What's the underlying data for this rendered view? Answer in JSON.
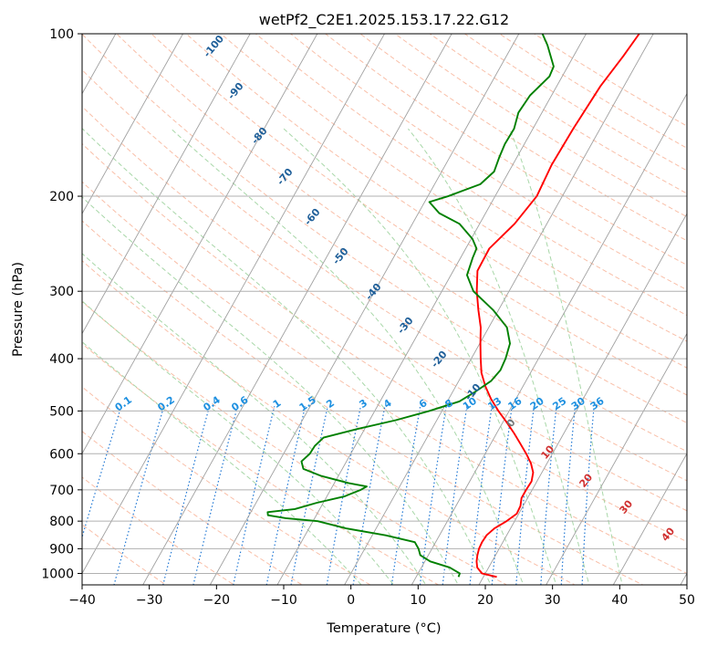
{
  "chart_data": {
    "type": "line",
    "subtype": "skew-t log-p",
    "title": "wetPf2_C2E1.2025.153.17.22.G12",
    "xlabel": "Temperature (°C)",
    "ylabel": "Pressure (hPa)",
    "xlim": [
      -40,
      50
    ],
    "ylim": [
      1050,
      100
    ],
    "y_scale": "log",
    "x_ticks": [
      "−40",
      "−30",
      "−20",
      "−10",
      "0",
      "10",
      "20",
      "30",
      "40",
      "50"
    ],
    "y_ticks": [
      "100",
      "200",
      "300",
      "400",
      "500",
      "600",
      "700",
      "800",
      "900",
      "1000"
    ],
    "grid": true,
    "series": [
      {
        "name": "",
        "color": "#ff0000",
        "pressure": [
          1015,
          1000,
          975,
          950,
          925,
          900,
          875,
          850,
          825,
          800,
          775,
          750,
          725,
          700,
          675,
          650,
          625,
          600,
          575,
          550,
          525,
          500,
          475,
          450,
          425,
          400,
          375,
          350,
          325,
          300,
          275,
          250,
          225,
          200,
          175,
          150,
          125,
          110,
          100
        ],
        "values": [
          22,
          19.5,
          18.3,
          17.7,
          17.3,
          17,
          16.9,
          17,
          17.6,
          18.8,
          19.7,
          19.6,
          19.1,
          19.1,
          19.2,
          18.7,
          17.6,
          16.1,
          14.4,
          12.6,
          10.6,
          8.4,
          6.3,
          4.4,
          2.7,
          1.4,
          0.1,
          -1.2,
          -3,
          -4.8,
          -6.4,
          -6.5,
          -4.8,
          -3.8,
          -4.2,
          -4,
          -3.5,
          -2.6,
          -2.1
        ]
      },
      {
        "name": "",
        "color": "#008000",
        "pressure": [
          1015,
          1000,
          975,
          950,
          925,
          900,
          875,
          850,
          825,
          800,
          790,
          780,
          770,
          760,
          740,
          720,
          700,
          690,
          680,
          660,
          640,
          620,
          600,
          580,
          560,
          540,
          520,
          500,
          480,
          460,
          440,
          420,
          400,
          375,
          350,
          325,
          300,
          280,
          260,
          250,
          240,
          225,
          215,
          205,
          200,
          190,
          180,
          170,
          160,
          150,
          140,
          130,
          120,
          115,
          105,
          100
        ],
        "values": [
          16.3,
          16.2,
          14.2,
          10.8,
          8.8,
          8.0,
          6.9,
          2,
          -4.5,
          -9.3,
          -14.3,
          -17.2,
          -17.5,
          -13.7,
          -11,
          -7.4,
          -5.5,
          -4.9,
          -7.9,
          -12.5,
          -15.8,
          -16.7,
          -16.1,
          -16,
          -15.4,
          -11.1,
          -6.1,
          -1.9,
          1.8,
          3.4,
          4.8,
          5.3,
          5.1,
          4.5,
          2.7,
          -0.8,
          -5.3,
          -7.6,
          -8.2,
          -8.4,
          -9.8,
          -13,
          -16.9,
          -19.3,
          -17,
          -13.2,
          -12.2,
          -12.6,
          -12.9,
          -12.8,
          -13.5,
          -13.2,
          -11.9,
          -12.1,
          -14.8,
          -16.5
        ]
      }
    ],
    "isotherm_skew_c_per_log10": 45,
    "dry_adiabats_theta_c": [
      -30,
      -20,
      -10,
      0,
      10,
      20,
      30,
      40,
      50,
      60,
      70,
      80,
      90,
      100,
      110,
      120,
      130,
      140,
      150,
      160,
      170,
      180,
      190,
      200,
      210,
      220
    ],
    "moist_adiabats_start_c": [
      0,
      5,
      10,
      15,
      20,
      25,
      30,
      35,
      40
    ],
    "mixing_ratio_labels": [
      "0.1",
      "0.2",
      "0.4",
      "0.6",
      "1",
      "1.5",
      "2",
      "3",
      "4",
      "6",
      "8",
      "10",
      "13",
      "16",
      "20",
      "25",
      "30",
      "36"
    ],
    "mixing_ratio_values": [
      0.1,
      0.2,
      0.4,
      0.6,
      1,
      1.5,
      2,
      3,
      4,
      6,
      8,
      10,
      13,
      16,
      20,
      25,
      30,
      36
    ],
    "wetbulb_labels_dark": [
      "-100",
      "-90",
      "-80",
      "-70",
      "-60",
      "-50",
      "-40",
      "-30",
      "-20",
      "-10"
    ],
    "wetbulb_label_zero": "0",
    "wetbulb_labels_red": [
      "10",
      "20",
      "30",
      "40"
    ],
    "colors": {
      "temperature": "#ff0000",
      "dewpoint": "#008000",
      "isotherm": "#a0a0a0",
      "isobar": "#b0b0b0",
      "dry_adiabat": "#f7a98b",
      "moist_adiabat": "#9fd39f",
      "mixing_ratio": "#1f77d4",
      "label_dark_blue": "#1f5f99",
      "label_blue": "#1e90e0",
      "label_red": "#d03030",
      "label_gray": "#777777"
    }
  }
}
